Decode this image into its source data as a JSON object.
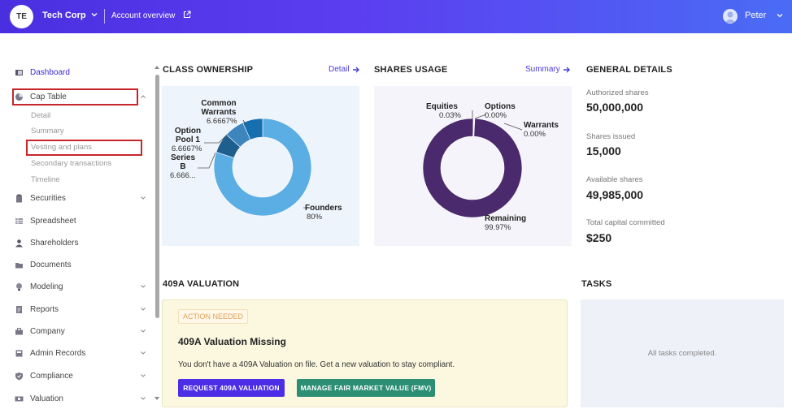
{
  "topbar": {
    "org_initials": "TE",
    "org_name": "Tech Corp",
    "account_link": "Account overview",
    "user_name": "Peter"
  },
  "sidebar": {
    "items": [
      {
        "label": "Dashboard",
        "icon": "dashboard-icon"
      },
      {
        "label": "Cap Table",
        "icon": "pie-chart-icon"
      },
      {
        "label": "Securities",
        "icon": "clipboard-icon"
      },
      {
        "label": "Spreadsheet",
        "icon": "table-icon"
      },
      {
        "label": "Shareholders",
        "icon": "person-icon"
      },
      {
        "label": "Documents",
        "icon": "folder-icon"
      },
      {
        "label": "Modeling",
        "icon": "lightbulb-icon"
      },
      {
        "label": "Reports",
        "icon": "report-icon"
      },
      {
        "label": "Company",
        "icon": "briefcase-icon"
      },
      {
        "label": "Admin Records",
        "icon": "records-icon"
      },
      {
        "label": "Compliance",
        "icon": "shield-icon"
      },
      {
        "label": "Valuation",
        "icon": "money-icon"
      }
    ],
    "cap_table_sub": [
      "Detail",
      "Summary",
      "Vesting and plans",
      "Secondary transactions",
      "Timeline"
    ]
  },
  "class_ownership": {
    "title": "CLASS OWNERSHIP",
    "link": "Detail",
    "chart_data": {
      "type": "pie",
      "categories": [
        "Founders",
        "Series B",
        "Option Pool 1",
        "Common Warrants"
      ],
      "values": [
        80,
        6.666,
        6.6667,
        6.6667
      ],
      "display_values": [
        "80%",
        "6.666...",
        "6.6667%",
        "6.6667%"
      ],
      "colors": [
        "#5aaee4",
        "#1f5f8f",
        "#3d86bd",
        "#1670b0"
      ]
    },
    "labels": {
      "founders_name": "Founders",
      "founders_val": "80%",
      "seriesb_name_1": "Series",
      "seriesb_name_2": "B",
      "seriesb_val": "6.666...",
      "option_name_1": "Option",
      "option_name_2": "Pool 1",
      "option_val": "6.6667%",
      "common_name_1": "Common",
      "common_name_2": "Warrants",
      "common_val": "6.6667%"
    }
  },
  "shares_usage": {
    "title": "SHARES USAGE",
    "link": "Summary",
    "chart_data": {
      "type": "pie",
      "categories": [
        "Remaining",
        "Equities",
        "Options",
        "Warrants"
      ],
      "values": [
        99.97,
        0.03,
        0.0,
        0.0
      ],
      "display_values": [
        "99.97%",
        "0.03%",
        "0.00%",
        "0.00%"
      ],
      "colors": [
        "#4a2a6c",
        "#7a5fa0",
        "#9b86c0",
        "#b7a9d4"
      ]
    }
  },
  "general_details": {
    "title": "GENERAL DETAILS",
    "items": [
      {
        "label": "Authorized shares",
        "value": "50,000,000"
      },
      {
        "label": "Shares issued",
        "value": "15,000"
      },
      {
        "label": "Available shares",
        "value": "49,985,000"
      },
      {
        "label": "Total capital committed",
        "value": "$250"
      }
    ]
  },
  "valuation": {
    "title": "409A VALUATION",
    "badge": "ACTION NEEDED",
    "card_title": "409A Valuation Missing",
    "description": "You don't have a 409A Valuation on file. Get a new valuation to stay compliant.",
    "primary_button": "REQUEST 409A VALUATION",
    "secondary_button": "MANAGE FAIR MARKET VALUE (FMV)"
  },
  "tasks": {
    "title": "TASKS",
    "empty": "All tasks completed."
  }
}
